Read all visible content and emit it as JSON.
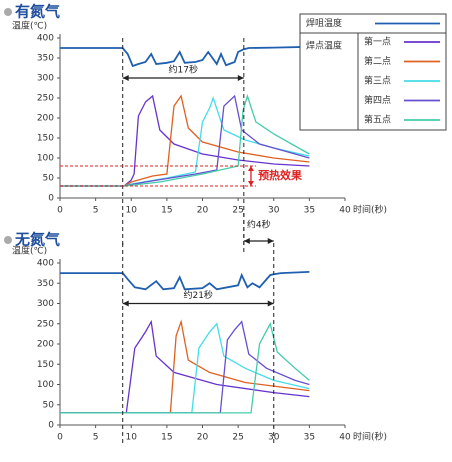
{
  "chart_data": [
    {
      "type": "line",
      "title": "有氮气",
      "y_label": "温度(℃)",
      "x_label": "时间(秒)",
      "xlim": [
        0,
        40
      ],
      "ylim": [
        0,
        400
      ],
      "xticks": [
        0,
        5,
        10,
        15,
        20,
        25,
        30,
        35,
        40
      ],
      "yticks": [
        0,
        50,
        100,
        150,
        200,
        250,
        300,
        350,
        400
      ],
      "legend_group_label": "焊点温度",
      "annotations": [
        "约17秒",
        "预热效果"
      ],
      "series": [
        {
          "name": "焊咀温度",
          "color": "#1f5fb0",
          "x": [
            0,
            8.8,
            9.5,
            10.2,
            11,
            12,
            12.8,
            13.5,
            15,
            16,
            16.8,
            17.5,
            19,
            20,
            20.8,
            22,
            22.6,
            23.3,
            24.5,
            25,
            25.8,
            26.5,
            30,
            35
          ],
          "values": [
            375,
            375,
            360,
            330,
            335,
            340,
            360,
            335,
            338,
            342,
            365,
            338,
            340,
            345,
            365,
            335,
            360,
            332,
            340,
            365,
            372,
            375,
            376,
            378
          ]
        },
        {
          "name": "第一点",
          "color": "#6633cc",
          "x": [
            0,
            9,
            10,
            10.4,
            11,
            12,
            13,
            14,
            16,
            20,
            25,
            30,
            35
          ],
          "values": [
            30,
            30,
            45,
            60,
            205,
            240,
            255,
            170,
            135,
            110,
            95,
            85,
            80
          ]
        },
        {
          "name": "第二点",
          "color": "#e06020",
          "x": [
            0,
            9,
            10,
            13,
            15,
            16,
            17,
            18,
            20,
            25,
            30,
            35
          ],
          "values": [
            30,
            30,
            40,
            55,
            60,
            230,
            255,
            175,
            140,
            115,
            100,
            90
          ]
        },
        {
          "name": "第三点",
          "color": "#44dde8",
          "x": [
            0,
            9,
            10,
            15,
            19,
            20,
            21,
            21.5,
            23,
            26,
            30,
            35
          ],
          "values": [
            30,
            30,
            35,
            50,
            65,
            190,
            225,
            250,
            170,
            145,
            125,
            105
          ]
        },
        {
          "name": "第四点",
          "color": "#6650d0",
          "x": [
            0,
            9,
            12,
            19,
            22,
            23,
            24.5,
            25.5,
            28,
            32,
            35
          ],
          "values": [
            30,
            30,
            40,
            60,
            70,
            230,
            255,
            170,
            135,
            115,
            100
          ]
        },
        {
          "name": "第五点",
          "color": "#44ccaa",
          "x": [
            0,
            9,
            14,
            20,
            25,
            25.7,
            26.3,
            27.5,
            30,
            33,
            35
          ],
          "values": [
            30,
            30,
            40,
            60,
            80,
            220,
            255,
            190,
            160,
            130,
            110
          ]
        }
      ]
    },
    {
      "type": "line",
      "title": "无氮气",
      "y_label": "温度(℃)",
      "x_label": "时间(秒)",
      "xlim": [
        0,
        40
      ],
      "ylim": [
        0,
        400
      ],
      "xticks": [
        0,
        5,
        10,
        15,
        20,
        25,
        30,
        35,
        40
      ],
      "yticks": [
        0,
        50,
        100,
        150,
        200,
        250,
        300,
        350,
        400
      ],
      "annotations": [
        "约4秒",
        "约21秒"
      ],
      "series": [
        {
          "color": "#1f5fb0",
          "x": [
            0,
            8.8,
            9.5,
            10.5,
            12,
            13.5,
            14.5,
            16,
            16.8,
            17.5,
            20,
            21,
            22,
            25,
            25.5,
            26.3,
            27,
            28,
            29.5,
            30,
            31,
            35
          ],
          "values": [
            375,
            375,
            360,
            340,
            335,
            355,
            335,
            338,
            365,
            335,
            338,
            350,
            335,
            345,
            370,
            340,
            350,
            340,
            370,
            372,
            375,
            378
          ]
        },
        {
          "color": "#6633cc",
          "x": [
            0,
            9.3,
            10.5,
            12,
            12.8,
            13.5,
            16,
            22,
            30,
            35
          ],
          "values": [
            30,
            30,
            190,
            230,
            255,
            170,
            130,
            100,
            80,
            70
          ]
        },
        {
          "color": "#e06020",
          "x": [
            0,
            15.5,
            16.3,
            17,
            18,
            21,
            26,
            35
          ],
          "values": [
            30,
            30,
            220,
            255,
            160,
            130,
            105,
            85
          ]
        },
        {
          "color": "#44dde8",
          "x": [
            0,
            18.5,
            19.5,
            21,
            22,
            23,
            26,
            30,
            35
          ],
          "values": [
            30,
            30,
            190,
            230,
            250,
            170,
            140,
            110,
            90
          ]
        },
        {
          "color": "#6650d0",
          "x": [
            0,
            22.5,
            23.5,
            24.5,
            25.5,
            26.5,
            29,
            33,
            35
          ],
          "values": [
            30,
            30,
            210,
            235,
            255,
            175,
            140,
            110,
            100
          ]
        },
        {
          "color": "#44ccaa",
          "x": [
            0,
            26.8,
            28,
            29.5,
            30.5,
            33,
            35
          ],
          "values": [
            30,
            30,
            200,
            250,
            180,
            140,
            110
          ]
        }
      ]
    }
  ]
}
